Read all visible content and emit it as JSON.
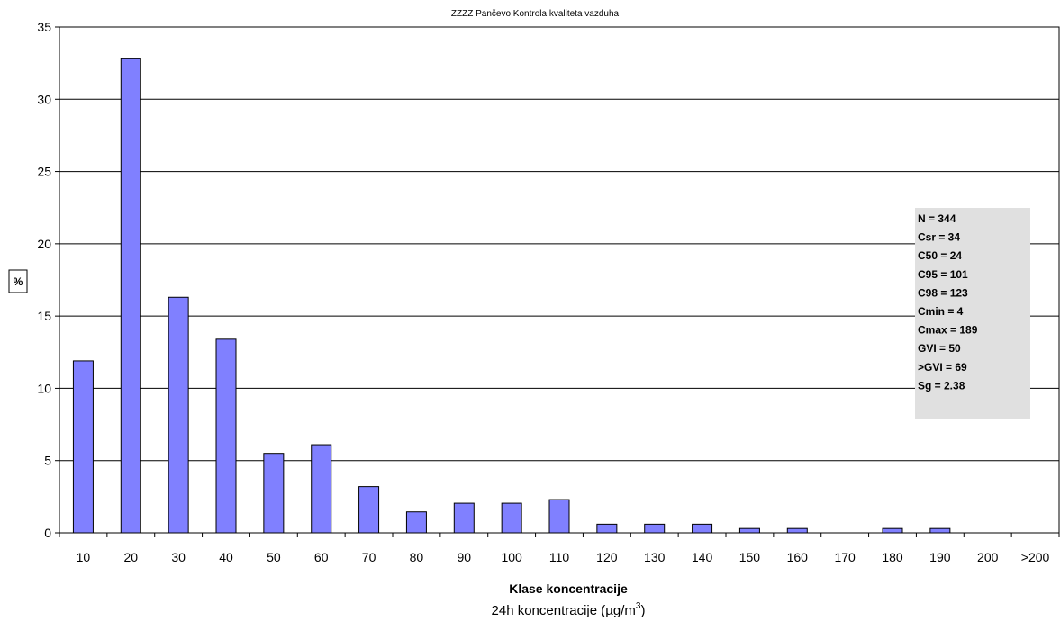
{
  "chart_data": {
    "type": "bar",
    "title": "ZZZZ Pančevo   Kontrola kvaliteta vazduha",
    "xlabel": "Klase koncentracije",
    "xlabel_sub": "24h  koncentracije (µg/m",
    "xlabel_sub_sup": "3",
    "xlabel_sub_end": ")",
    "ylabel": "%",
    "ylim": [
      0,
      35
    ],
    "yticks": [
      "0",
      "5",
      "10",
      "15",
      "20",
      "25",
      "30",
      "35"
    ],
    "grid": true,
    "categories": [
      "10",
      "20",
      "30",
      "40",
      "50",
      "60",
      "70",
      "80",
      "90",
      "100",
      "110",
      "120",
      "130",
      "140",
      "150",
      "160",
      "170",
      "180",
      "190",
      "200",
      ">200"
    ],
    "values": [
      11.9,
      32.8,
      16.3,
      13.4,
      5.5,
      6.1,
      3.2,
      1.45,
      2.05,
      2.05,
      2.3,
      0.6,
      0.6,
      0.6,
      0.3,
      0.3,
      0,
      0.3,
      0.3,
      0,
      0
    ],
    "bar_color": "#8080ff",
    "stats_box": {
      "lines": [
        "N = 344",
        "Csr = 34",
        "C50 = 24",
        "C95 = 101",
        "C98 = 123",
        "Cmin = 4",
        "Cmax = 189",
        "GVI = 50",
        ">GVI = 69",
        "Sg = 2.38"
      ],
      "background": "#e0e0e0",
      "placement": "right"
    }
  }
}
